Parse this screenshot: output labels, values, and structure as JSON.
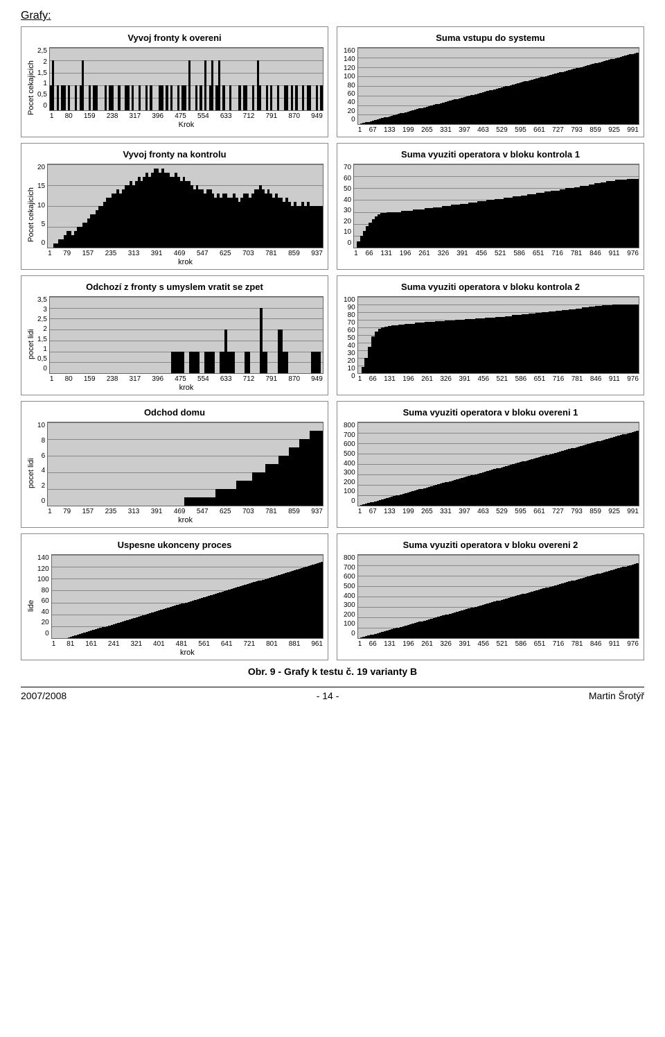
{
  "section_title": "Grafy:",
  "caption": "Obr. 9 - Grafy k testu č. 19 varianty B",
  "footer": {
    "left": "2007/2008",
    "center": "- 14 -",
    "right": "Martin Šrotýř"
  },
  "style": {
    "plot_bg": "#cccccc",
    "grid_color": "#888888",
    "bar_color": "#000000",
    "border_color": "#666666",
    "title_fontsize": 13,
    "tick_fontsize": 10,
    "label_fontsize": 11
  },
  "charts": [
    {
      "title": "Vyvoj fronty k overeni",
      "ylabel": "Pocet cekajicich",
      "xlabel": "Krok",
      "height": 90,
      "ylim": [
        0,
        2.5
      ],
      "yticks": [
        "2,5",
        "2",
        "1,5",
        "1",
        "0,5",
        "0"
      ],
      "xticks": [
        "1",
        "80",
        "159",
        "238",
        "317",
        "396",
        "475",
        "554",
        "633",
        "712",
        "791",
        "870",
        "949"
      ],
      "xtick_indent": 30,
      "series": "sparse_bars",
      "values": [
        1,
        2,
        0,
        1,
        0,
        1,
        1,
        0,
        1,
        0,
        0,
        1,
        0,
        1,
        2,
        0,
        0,
        1,
        0,
        1,
        1,
        0,
        0,
        0,
        1,
        0,
        1,
        1,
        0,
        0,
        1,
        0,
        0,
        1,
        1,
        0,
        1,
        0,
        0,
        1,
        0,
        0,
        1,
        0,
        1,
        0,
        0,
        0,
        1,
        1,
        0,
        1,
        0,
        1,
        0,
        0,
        1,
        0,
        1,
        1,
        0,
        2,
        0,
        0,
        1,
        0,
        1,
        0,
        2,
        0,
        1,
        2,
        0,
        1,
        2,
        0,
        1,
        0,
        0,
        1,
        0,
        0,
        0,
        1,
        0,
        1,
        1,
        0,
        0,
        1,
        0,
        2,
        1,
        0,
        0,
        1,
        0,
        1,
        0,
        0,
        1,
        0,
        0,
        1,
        1,
        0,
        1,
        0,
        1,
        0,
        0,
        1,
        0,
        1,
        1,
        0,
        0,
        1,
        0,
        1
      ]
    },
    {
      "title": "Suma vstupu do systemu",
      "ylabel": "",
      "xlabel": "",
      "height": 110,
      "ylim": [
        0,
        160
      ],
      "yticks": [
        "160",
        "140",
        "120",
        "100",
        "80",
        "60",
        "40",
        "20",
        "0"
      ],
      "xticks": [
        "1",
        "67",
        "133",
        "199",
        "265",
        "331",
        "397",
        "463",
        "529",
        "595",
        "661",
        "727",
        "793",
        "859",
        "925",
        "991"
      ],
      "xtick_indent": 12,
      "series": "cumulative",
      "start": 0,
      "end": 150,
      "n": 120
    },
    {
      "title": "Vyvoj fronty na kontrolu",
      "ylabel": "Pocet cekajicich",
      "xlabel": "krok",
      "height": 120,
      "ylim": [
        0,
        20
      ],
      "yticks": [
        "20",
        "15",
        "10",
        "5",
        "0"
      ],
      "xticks": [
        "1",
        "79",
        "157",
        "235",
        "313",
        "391",
        "469",
        "547",
        "625",
        "703",
        "781",
        "859",
        "937"
      ],
      "xtick_indent": 30,
      "series": "shape",
      "values": [
        0,
        0,
        1,
        1,
        2,
        2,
        3,
        4,
        4,
        3,
        4,
        5,
        5,
        6,
        6,
        7,
        8,
        8,
        9,
        10,
        10,
        11,
        12,
        12,
        13,
        13,
        14,
        13,
        14,
        15,
        15,
        16,
        15,
        16,
        17,
        16,
        17,
        18,
        17,
        18,
        19,
        19,
        18,
        19,
        18,
        18,
        17,
        17,
        18,
        17,
        16,
        17,
        16,
        16,
        15,
        14,
        15,
        14,
        14,
        13,
        14,
        14,
        13,
        12,
        13,
        12,
        13,
        13,
        12,
        12,
        13,
        12,
        11,
        12,
        13,
        13,
        12,
        13,
        14,
        14,
        15,
        14,
        13,
        14,
        13,
        12,
        13,
        12,
        12,
        11,
        12,
        11,
        10,
        11,
        10,
        10,
        11,
        10,
        11,
        10,
        10,
        10,
        10,
        10
      ]
    },
    {
      "title": "Suma vyuziti operatora v bloku kontrola 1",
      "ylabel": "",
      "xlabel": "",
      "height": 120,
      "ylim": [
        0,
        70
      ],
      "yticks": [
        "70",
        "60",
        "50",
        "40",
        "30",
        "20",
        "10",
        "0"
      ],
      "xticks": [
        "1",
        "66",
        "131",
        "196",
        "261",
        "326",
        "391",
        "456",
        "521",
        "586",
        "651",
        "716",
        "781",
        "846",
        "911",
        "976"
      ],
      "xtick_indent": 12,
      "series": "shape",
      "values": [
        0,
        5,
        10,
        14,
        18,
        21,
        24,
        26,
        28,
        29,
        29,
        30,
        30,
        30,
        30,
        30,
        31,
        31,
        31,
        31,
        32,
        32,
        32,
        32,
        33,
        33,
        33,
        34,
        34,
        34,
        35,
        35,
        35,
        36,
        36,
        36,
        37,
        37,
        37,
        38,
        38,
        38,
        39,
        39,
        39,
        40,
        40,
        40,
        41,
        41,
        41,
        42,
        42,
        42,
        43,
        43,
        43,
        44,
        44,
        45,
        45,
        45,
        46,
        46,
        46,
        47,
        47,
        48,
        48,
        48,
        49,
        49,
        50,
        50,
        50,
        51,
        51,
        52,
        52,
        52,
        53,
        53,
        54,
        54,
        55,
        55,
        56,
        56,
        56,
        57,
        57,
        57,
        57,
        58,
        58,
        58,
        58
      ]
    },
    {
      "title": "Odchozí z fronty s umyslem vratit se zpet",
      "ylabel": "pocet lidi",
      "xlabel": "krok",
      "height": 110,
      "ylim": [
        0,
        3.5
      ],
      "yticks": [
        "3,5",
        "3",
        "2,5",
        "2",
        "1,5",
        "1",
        "0,5",
        "0"
      ],
      "xticks": [
        "1",
        "80",
        "159",
        "238",
        "317",
        "396",
        "475",
        "554",
        "633",
        "712",
        "791",
        "870",
        "949"
      ],
      "xtick_indent": 30,
      "series": "sparse_bars",
      "values": [
        0,
        0,
        0,
        0,
        0,
        0,
        0,
        0,
        0,
        0,
        0,
        0,
        0,
        0,
        0,
        0,
        0,
        0,
        0,
        0,
        0,
        0,
        0,
        0,
        0,
        0,
        0,
        0,
        0,
        0,
        0,
        0,
        0,
        0,
        0,
        0,
        0,
        0,
        0,
        0,
        0,
        0,
        0,
        0,
        0,
        0,
        0,
        0,
        1,
        1,
        1,
        1,
        1,
        0,
        0,
        1,
        1,
        1,
        1,
        0,
        0,
        1,
        1,
        1,
        1,
        0,
        0,
        1,
        1,
        2,
        1,
        1,
        1,
        0,
        0,
        0,
        0,
        1,
        1,
        0,
        0,
        0,
        0,
        3,
        1,
        1,
        0,
        0,
        0,
        0,
        2,
        2,
        1,
        1,
        0,
        0,
        0,
        0,
        0,
        0,
        0,
        0,
        0,
        1,
        1,
        1,
        1,
        0
      ]
    },
    {
      "title": "Suma vyuziti operatora v bloku kontrola 2",
      "ylabel": "",
      "xlabel": "",
      "height": 110,
      "ylim": [
        0,
        100
      ],
      "yticks": [
        "100",
        "90",
        "80",
        "70",
        "60",
        "50",
        "40",
        "30",
        "20",
        "10",
        "0"
      ],
      "xticks": [
        "1",
        "66",
        "131",
        "196",
        "261",
        "326",
        "391",
        "456",
        "521",
        "586",
        "651",
        "716",
        "781",
        "846",
        "911",
        "976"
      ],
      "xtick_indent": 12,
      "series": "shape",
      "values": [
        0,
        8,
        20,
        35,
        48,
        55,
        58,
        60,
        61,
        62,
        63,
        63,
        64,
        64,
        65,
        65,
        65,
        66,
        66,
        66,
        67,
        67,
        67,
        68,
        68,
        68,
        69,
        69,
        69,
        70,
        70,
        70,
        71,
        71,
        71,
        72,
        72,
        72,
        73,
        73,
        73,
        74,
        74,
        74,
        75,
        75,
        76,
        76,
        76,
        77,
        77,
        78,
        78,
        79,
        79,
        80,
        80,
        81,
        81,
        82,
        82,
        83,
        83,
        84,
        84,
        85,
        85,
        86,
        86,
        87,
        87,
        88,
        88,
        89,
        89,
        89,
        90,
        90,
        90,
        90,
        90,
        90,
        90,
        90
      ]
    },
    {
      "title": "Odchod domu",
      "ylabel": "pocet lidi",
      "xlabel": "krok",
      "height": 120,
      "ylim": [
        0,
        10
      ],
      "yticks": [
        "10",
        "8",
        "6",
        "4",
        "2",
        "0"
      ],
      "xticks": [
        "1",
        "79",
        "157",
        "235",
        "313",
        "391",
        "469",
        "547",
        "625",
        "703",
        "781",
        "859",
        "937"
      ],
      "xtick_indent": 30,
      "series": "shape",
      "values": [
        0,
        0,
        0,
        0,
        0,
        0,
        0,
        0,
        0,
        0,
        0,
        0,
        0,
        0,
        0,
        0,
        0,
        0,
        0,
        0,
        0,
        0,
        0,
        0,
        0,
        0,
        0,
        0,
        0,
        0,
        0,
        0,
        0,
        0,
        0,
        0,
        0,
        0,
        0,
        0,
        0,
        0,
        0,
        0,
        0,
        0,
        0,
        0,
        0,
        0,
        0,
        0,
        1,
        1,
        1,
        1,
        1,
        1,
        1,
        1,
        1,
        1,
        1,
        1,
        2,
        2,
        2,
        2,
        2,
        2,
        2,
        2,
        3,
        3,
        3,
        3,
        3,
        3,
        4,
        4,
        4,
        4,
        4,
        5,
        5,
        5,
        5,
        5,
        6,
        6,
        6,
        6,
        7,
        7,
        7,
        7,
        8,
        8,
        8,
        8,
        9,
        9,
        9,
        9,
        9
      ]
    },
    {
      "title": "Suma vyuziti operatora v bloku overeni 1",
      "ylabel": "",
      "xlabel": "",
      "height": 120,
      "ylim": [
        0,
        800
      ],
      "yticks": [
        "800",
        "700",
        "600",
        "500",
        "400",
        "300",
        "200",
        "100",
        "0"
      ],
      "xticks": [
        "1",
        "67",
        "133",
        "199",
        "265",
        "331",
        "397",
        "463",
        "529",
        "595",
        "661",
        "727",
        "793",
        "859",
        "925",
        "991"
      ],
      "xtick_indent": 12,
      "series": "cumulative",
      "start": 0,
      "end": 720,
      "n": 120
    },
    {
      "title": "Uspesne ukonceny proces",
      "ylabel": "lide",
      "xlabel": "krok",
      "height": 120,
      "ylim": [
        0,
        140
      ],
      "yticks": [
        "140",
        "120",
        "100",
        "80",
        "60",
        "40",
        "20",
        "0"
      ],
      "xticks": [
        "1",
        "81",
        "161",
        "241",
        "321",
        "401",
        "481",
        "561",
        "641",
        "721",
        "801",
        "881",
        "961"
      ],
      "xtick_indent": 30,
      "series": "cumulative",
      "start": 0,
      "end": 128,
      "n": 120,
      "delay": 6
    },
    {
      "title": "Suma vyuziti operatora v bloku overeni 2",
      "ylabel": "",
      "xlabel": "",
      "height": 120,
      "ylim": [
        0,
        800
      ],
      "yticks": [
        "800",
        "700",
        "600",
        "500",
        "400",
        "300",
        "200",
        "100",
        "0"
      ],
      "xticks": [
        "1",
        "66",
        "131",
        "196",
        "261",
        "326",
        "391",
        "456",
        "521",
        "586",
        "651",
        "716",
        "781",
        "846",
        "911",
        "976"
      ],
      "xtick_indent": 12,
      "series": "cumulative",
      "start": 0,
      "end": 720,
      "n": 120
    }
  ]
}
